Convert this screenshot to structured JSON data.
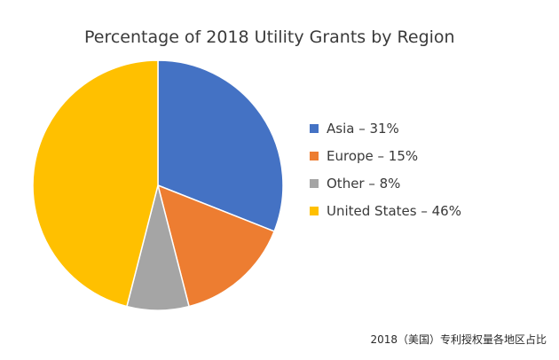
{
  "chart_data": {
    "type": "pie",
    "title": "Percentage of 2018 Utility Grants by Region",
    "slices": [
      {
        "label": "Asia",
        "value": 31,
        "legend": "Asia – 31%",
        "color": "#4472C4"
      },
      {
        "label": "Europe",
        "value": 15,
        "legend": "Europe – 15%",
        "color": "#ED7D31"
      },
      {
        "label": "Other",
        "value": 8,
        "legend": "Other – 8%",
        "color": "#A5A5A5"
      },
      {
        "label": "United States",
        "value": 46,
        "legend": "United States – 46%",
        "color": "#FFC000"
      }
    ],
    "legend_position": "right"
  },
  "caption": "2018（美国）专利授权量各地区占比"
}
